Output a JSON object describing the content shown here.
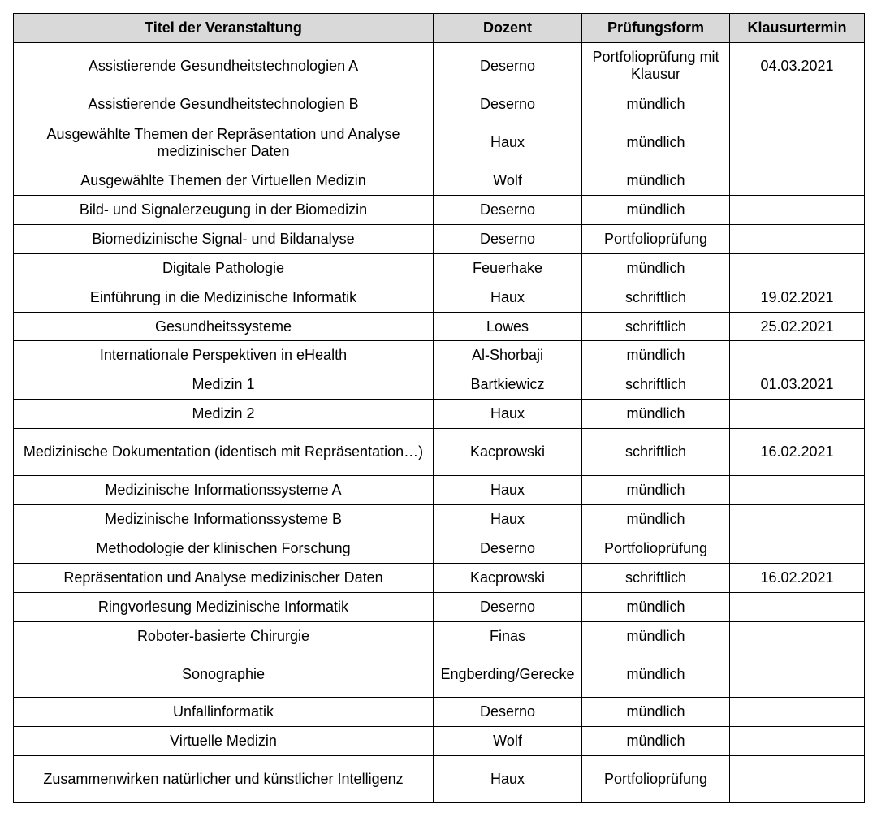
{
  "table": {
    "header": [
      "Titel der Veranstaltung",
      "Dozent",
      "Prüfungsform",
      "Klausurtermin"
    ],
    "rows": [
      [
        "Assistierende Gesundheitstechnologien A",
        "Deserno",
        "Portfolioprüfung mit Klausur",
        "04.03.2021"
      ],
      [
        "Assistierende Gesundheitstechnologien B",
        "Deserno",
        "mündlich",
        null
      ],
      [
        "Ausgewählte Themen der Repräsentation und Analyse medizinischer Daten",
        "Haux",
        "mündlich",
        null
      ],
      [
        "Ausgewählte Themen der Virtuellen Medizin",
        "Wolf",
        "mündlich",
        null
      ],
      [
        "Bild- und Signalerzeugung in der Biomedizin",
        "Deserno",
        "mündlich",
        null
      ],
      [
        "Biomedizinische Signal- und Bildanalyse",
        "Deserno",
        "Portfolioprüfung",
        null
      ],
      [
        "Digitale Pathologie",
        "Feuerhake",
        "mündlich",
        null
      ],
      [
        "Einführung in die Medizinische Informatik",
        "Haux",
        "schriftlich",
        "19.02.2021"
      ],
      [
        "Gesundheitssysteme",
        "Lowes",
        "schriftlich",
        "25.02.2021"
      ],
      [
        "Internationale Perspektiven in eHealth",
        "Al-Shorbaji",
        "mündlich",
        null
      ],
      [
        "Medizin 1",
        "Bartkiewicz",
        "schriftlich",
        "01.03.2021"
      ],
      [
        "Medizin 2",
        "Haux",
        "mündlich",
        null
      ],
      [
        "Medizinische Dokumentation (identisch mit Repräsentation…)",
        "Kacprowski",
        "schriftlich",
        "16.02.2021"
      ],
      [
        "Medizinische Informationssysteme A",
        "Haux",
        "mündlich",
        null
      ],
      [
        "Medizinische Informationssysteme B",
        "Haux",
        "mündlich",
        null
      ],
      [
        "Methodologie der klinischen Forschung",
        "Deserno",
        "Portfolioprüfung",
        null
      ],
      [
        "Repräsentation und Analyse medizinischer Daten",
        "Kacprowski",
        "schriftlich",
        "16.02.2021"
      ],
      [
        "Ringvorlesung Medizinische Informatik",
        "Deserno",
        "mündlich",
        null
      ],
      [
        "Roboter-basierte Chirurgie",
        "Finas",
        "mündlich",
        null
      ],
      [
        "Sonographie",
        "Engberding/Gerecke",
        "mündlich",
        null
      ],
      [
        "Unfallinformatik",
        "Deserno",
        "mündlich",
        null
      ],
      [
        "Virtuelle Medizin",
        "Wolf",
        "mündlich",
        null
      ],
      [
        "Zusammenwirken natürlicher und künstlicher Intelligenz",
        "Haux",
        "Portfolioprüfung",
        null
      ]
    ]
  }
}
